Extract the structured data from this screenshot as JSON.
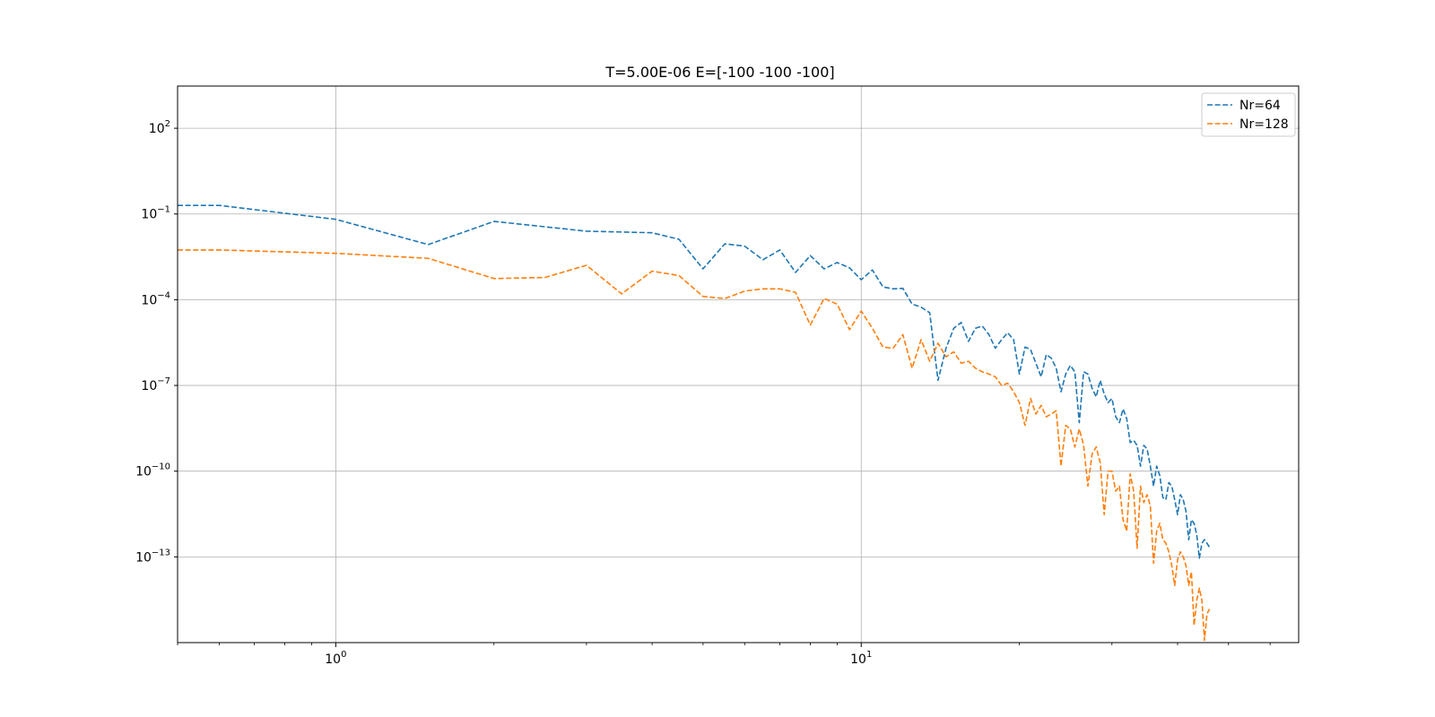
{
  "chart_data": {
    "type": "line",
    "title": "T=5.00E-06 E=[-100 -100 -100]",
    "xlabel": "",
    "ylabel": "",
    "xscale": "log",
    "yscale": "log",
    "xlim": [
      0.5,
      68
    ],
    "ylim": [
      1e-16,
      3000.0
    ],
    "grid": true,
    "legend_position": "top-right",
    "x_ticks": [
      {
        "value": 1,
        "base": "10",
        "exp": "0"
      },
      {
        "value": 10,
        "base": "10",
        "exp": "1"
      }
    ],
    "y_ticks": [
      {
        "value": 100,
        "base": "10",
        "exp": "2"
      },
      {
        "value": 0.1,
        "base": "10",
        "exp": "−1"
      },
      {
        "value": 0.0001,
        "base": "10",
        "exp": "−4"
      },
      {
        "value": 1e-07,
        "base": "10",
        "exp": "−7"
      },
      {
        "value": 1e-10,
        "base": "10",
        "exp": "−10"
      },
      {
        "value": 1e-13,
        "base": "10",
        "exp": "−13"
      }
    ],
    "series": [
      {
        "name": "Nr=64",
        "color": "#1f77b4",
        "style": "dashed",
        "x": [
          0.5,
          0.6,
          1.0,
          1.5,
          2.0,
          3.0,
          4.0,
          4.5,
          5.0,
          5.5,
          6.0,
          6.5,
          7.0,
          7.5,
          8.0,
          8.5,
          9.0,
          9.5,
          10.0,
          10.5,
          11.0,
          11.5,
          12.0,
          12.5,
          13.0,
          13.5,
          14.0,
          14.5,
          15.0,
          15.5,
          16.0,
          16.5,
          17.0,
          17.5,
          18.0,
          18.5,
          19.0,
          19.5,
          20.0,
          20.5,
          21.0,
          21.5,
          22.0,
          22.5,
          23.0,
          23.5,
          24.0,
          24.5,
          25.0,
          25.5,
          26.0,
          26.5,
          27.0,
          27.5,
          28.0,
          28.5,
          29.0,
          29.5,
          30.0,
          30.5,
          31.0,
          31.5,
          32.0,
          32.5,
          33.0,
          33.5,
          34.0,
          34.5,
          35.0,
          35.5,
          36.0,
          36.5,
          37.0,
          37.5,
          38.0,
          38.5,
          39.0,
          39.5,
          40.0,
          40.5,
          41.0,
          41.5,
          42.0,
          42.5,
          43.0,
          43.5,
          44.0,
          44.5,
          45.0,
          45.5,
          46.0
        ],
        "y": [
          0.2,
          0.2,
          0.065,
          0.0085,
          0.055,
          0.025,
          0.022,
          0.013,
          0.0012,
          0.009,
          0.0075,
          0.0025,
          0.0055,
          0.0009,
          0.0035,
          0.0012,
          0.002,
          0.0013,
          0.0005,
          0.0011,
          0.00028,
          0.00024,
          0.00025,
          7e-05,
          5.5e-05,
          3.5e-05,
          1.5e-07,
          2e-06,
          1e-05,
          1.6e-05,
          3.5e-06,
          1e-05,
          1.2e-05,
          6e-06,
          2e-06,
          4e-06,
          7e-06,
          4e-06,
          2.5e-07,
          2.2e-06,
          1.8e-06,
          6e-07,
          2e-07,
          1.2e-06,
          9e-07,
          4e-07,
          6e-08,
          2.5e-07,
          5e-07,
          3e-07,
          5e-09,
          3e-07,
          2.5e-07,
          8e-08,
          4e-08,
          1.5e-07,
          5e-08,
          2.5e-08,
          3.5e-08,
          8e-09,
          5e-09,
          1.5e-08,
          7e-09,
          1e-09,
          1.2e-09,
          8e-10,
          1.5e-10,
          8e-10,
          6e-10,
          1.5e-10,
          3e-11,
          1.5e-10,
          7e-11,
          1.2e-11,
          1e-11,
          4e-11,
          3e-11,
          1e-11,
          3e-12,
          1.5e-11,
          1e-11,
          4e-12,
          4e-13,
          2e-12,
          1.5e-12,
          6e-13,
          9e-14,
          3e-13,
          4e-13,
          3e-13,
          2.2e-13
        ]
      },
      {
        "name": "Nr=128",
        "color": "#ff7f0e",
        "style": "dashed",
        "x": [
          0.5,
          0.6,
          1.0,
          1.5,
          2.0,
          2.5,
          3.0,
          3.5,
          4.0,
          4.5,
          5.0,
          5.5,
          6.0,
          6.5,
          7.0,
          7.5,
          8.0,
          8.5,
          9.0,
          9.5,
          10.0,
          10.5,
          11.0,
          11.5,
          12.0,
          12.5,
          13.0,
          13.5,
          14.0,
          14.5,
          15.0,
          15.5,
          16.0,
          16.5,
          17.0,
          17.5,
          18.0,
          18.5,
          19.0,
          19.5,
          20.0,
          20.5,
          21.0,
          21.5,
          22.0,
          22.5,
          23.0,
          23.5,
          24.0,
          24.5,
          25.0,
          25.5,
          26.0,
          26.5,
          27.0,
          27.5,
          28.0,
          28.5,
          29.0,
          29.5,
          30.0,
          30.5,
          31.0,
          31.5,
          32.0,
          32.5,
          33.0,
          33.5,
          34.0,
          34.5,
          35.0,
          35.5,
          36.0,
          36.5,
          37.0,
          37.5,
          38.0,
          38.5,
          39.0,
          39.5,
          40.0,
          40.5,
          41.0,
          41.5,
          42.0,
          42.5,
          43.0,
          43.5,
          44.0,
          44.5,
          45.0,
          45.5,
          46.0
        ],
        "y": [
          0.0055,
          0.0055,
          0.0042,
          0.0028,
          0.00055,
          0.0006,
          0.0016,
          0.00016,
          0.001,
          0.0007,
          0.00013,
          0.00011,
          0.0002,
          0.00024,
          0.00024,
          0.00018,
          1.3e-05,
          0.00011,
          7e-05,
          9e-06,
          4e-05,
          1e-05,
          2.2e-06,
          2e-06,
          6e-06,
          4e-07,
          4e-06,
          7e-07,
          3e-06,
          1e-06,
          1.5e-06,
          6e-07,
          7e-07,
          4e-07,
          3e-07,
          2.5e-07,
          2e-07,
          1e-07,
          1.2e-07,
          6e-08,
          2.5e-08,
          4e-09,
          3.5e-08,
          1e-08,
          2e-08,
          8e-09,
          1e-08,
          1.3e-08,
          1.5e-10,
          4e-09,
          3e-09,
          7e-10,
          3e-09,
          8e-10,
          3e-11,
          4e-10,
          7e-10,
          2e-10,
          3e-12,
          1e-10,
          1e-10,
          2e-11,
          3e-11,
          2e-12,
          8e-13,
          8e-11,
          2e-11,
          2e-13,
          3e-11,
          8e-12,
          1.5e-11,
          6e-12,
          6e-14,
          8e-13,
          1.5e-12,
          4e-13,
          3e-13,
          1.5e-13,
          5e-14,
          1e-14,
          8e-14,
          1.5e-13,
          1e-13,
          5e-14,
          1e-14,
          3e-14,
          4e-16,
          3e-15,
          8e-15,
          3e-15,
          1.2e-16,
          1e-15,
          1.5e-15
        ]
      }
    ]
  }
}
